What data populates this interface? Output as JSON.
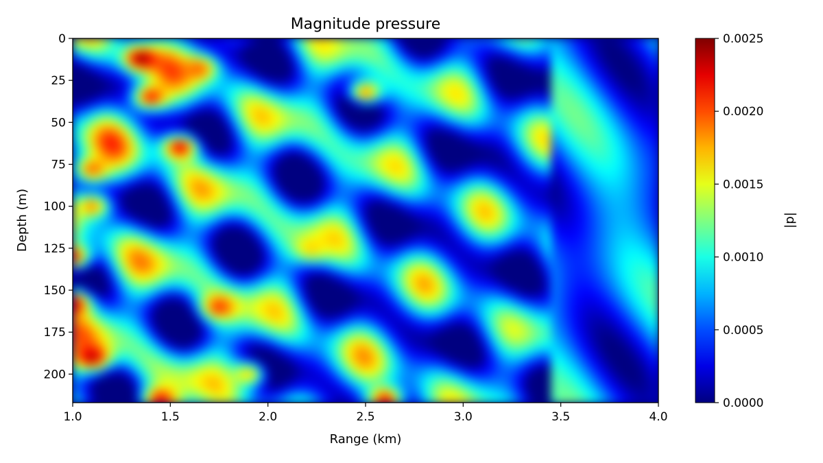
{
  "chart_data": {
    "type": "heatmap",
    "title": "Magnitude pressure",
    "xlabel": "Range (km)",
    "ylabel": "Depth (m)",
    "xlim": [
      1.0,
      4.0
    ],
    "ylim": [
      217,
      0
    ],
    "x_ticks": [
      1.0,
      1.5,
      2.0,
      2.5,
      3.0,
      3.5,
      4.0
    ],
    "x_tick_labels": [
      "1.0",
      "1.5",
      "2.0",
      "2.5",
      "3.0",
      "3.5",
      "4.0"
    ],
    "y_ticks": [
      0,
      25,
      50,
      75,
      100,
      125,
      150,
      175,
      200
    ],
    "y_tick_labels": [
      "0",
      "25",
      "50",
      "75",
      "100",
      "125",
      "150",
      "175",
      "200"
    ],
    "colormap": "jet",
    "colorbar": {
      "label": "|p|",
      "range": [
        0.0,
        0.0025
      ],
      "ticks": [
        0.0,
        0.0005,
        0.001,
        0.0015,
        0.002,
        0.0025
      ],
      "tick_labels": [
        "0.0000",
        "0.0005",
        "0.0010",
        "0.0015",
        "0.0020",
        "0.0025"
      ]
    },
    "grid": false,
    "hotspots": [
      {
        "x": 1.35,
        "y": 12,
        "value": 0.0025
      },
      {
        "x": 1.65,
        "y": 18,
        "value": 0.002
      },
      {
        "x": 1.4,
        "y": 35,
        "value": 0.0022
      },
      {
        "x": 1.55,
        "y": 65,
        "value": 0.0023
      },
      {
        "x": 1.1,
        "y": 78,
        "value": 0.002
      },
      {
        "x": 1.1,
        "y": 100,
        "value": 0.0019
      },
      {
        "x": 1.0,
        "y": 130,
        "value": 0.0022
      },
      {
        "x": 1.0,
        "y": 158,
        "value": 0.0024
      },
      {
        "x": 1.1,
        "y": 190,
        "value": 0.0024
      },
      {
        "x": 1.45,
        "y": 215,
        "value": 0.0022
      },
      {
        "x": 1.75,
        "y": 160,
        "value": 0.0021
      },
      {
        "x": 2.5,
        "y": 32,
        "value": 0.0019
      },
      {
        "x": 2.22,
        "y": 125,
        "value": 0.0017
      },
      {
        "x": 1.9,
        "y": 200,
        "value": 0.0017
      },
      {
        "x": 2.6,
        "y": 215,
        "value": 0.0022
      }
    ]
  }
}
